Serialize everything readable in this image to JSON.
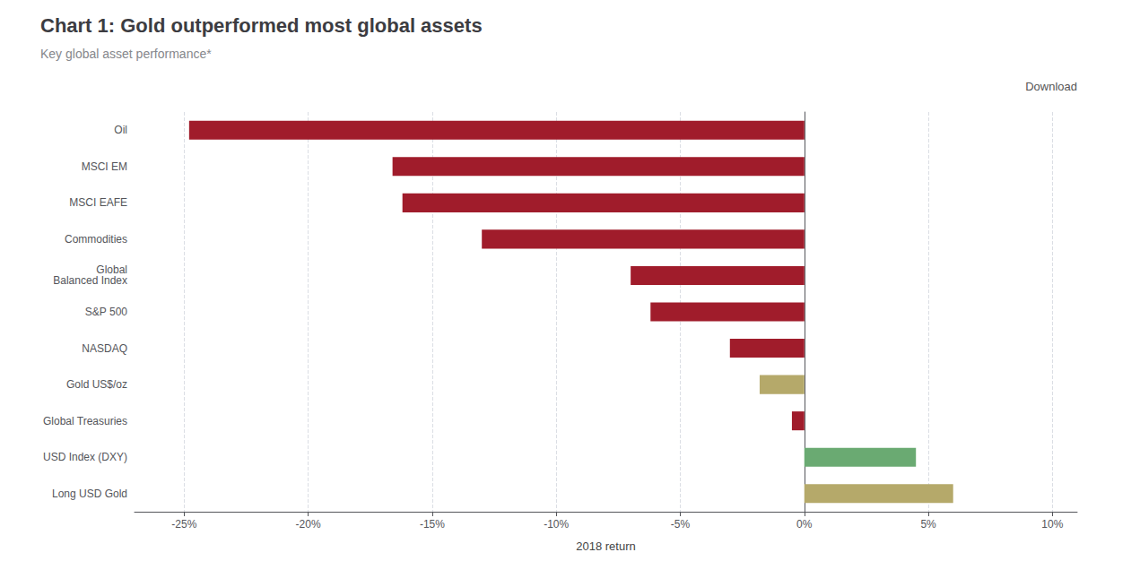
{
  "chart_data": {
    "type": "bar",
    "orientation": "horizontal",
    "title": "Chart 1: Gold outperformed most global assets",
    "subtitle": "Key global asset performance*",
    "annotation": "Download",
    "xlabel": "2018 return",
    "categories": [
      "Oil",
      "MSCI EM",
      "MSCI EAFE",
      "Commodities",
      "Global\nBalanced Index",
      "S&P 500",
      "NASDAQ",
      "Gold US$/oz",
      "Global Treasuries",
      "USD Index (DXY)",
      "Long USD Gold"
    ],
    "values": [
      -24.8,
      -16.6,
      -16.2,
      -13.0,
      -7.0,
      -6.2,
      -3.0,
      -1.8,
      -0.5,
      4.5,
      6.0
    ],
    "colors": [
      "#a01c2b",
      "#a01c2b",
      "#a01c2b",
      "#a01c2b",
      "#a01c2b",
      "#a01c2b",
      "#a01c2b",
      "#b5a96a",
      "#a01c2b",
      "#6aaa72",
      "#b5a96a"
    ],
    "xlim": [
      -27,
      11
    ],
    "xticks": [
      {
        "value": -25,
        "label": "-25%"
      },
      {
        "value": -20,
        "label": "-20%"
      },
      {
        "value": -15,
        "label": "-15%"
      },
      {
        "value": -10,
        "label": "-10%"
      },
      {
        "value": -5,
        "label": "-5%"
      },
      {
        "value": 0,
        "label": "0%"
      },
      {
        "value": 5,
        "label": "5%"
      },
      {
        "value": 10,
        "label": "10%"
      }
    ],
    "grid": true
  }
}
